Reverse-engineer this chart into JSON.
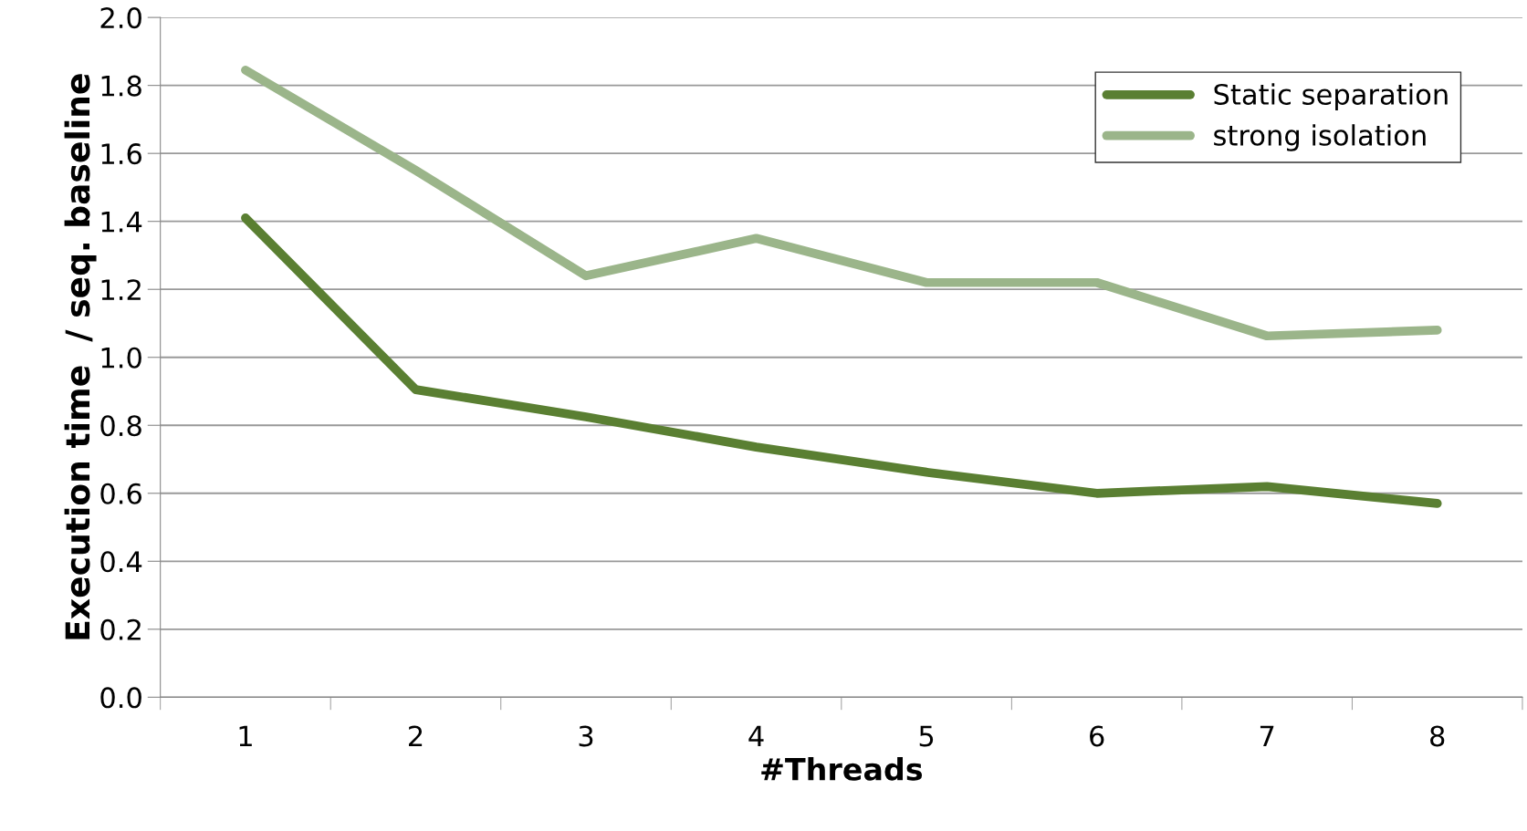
{
  "chart_data": {
    "type": "line",
    "xlabel": "#Threads",
    "ylabel": "Execution time  / seq. baseline",
    "categories": [
      "1",
      "2",
      "3",
      "4",
      "5",
      "6",
      "7",
      "8"
    ],
    "series": [
      {
        "name": "Static separation",
        "color": "#5a7f32",
        "values": [
          1.41,
          0.905,
          0.825,
          0.736,
          0.662,
          0.6,
          0.62,
          0.57
        ]
      },
      {
        "name": "strong isolation",
        "color": "#9bb58a",
        "values": [
          1.845,
          1.55,
          1.24,
          1.35,
          1.22,
          1.22,
          1.063,
          1.08
        ]
      }
    ],
    "ylim": [
      0,
      2
    ],
    "yticks": [
      {
        "value": 0,
        "label": "0.0"
      },
      0.2,
      0.4,
      0.6,
      0.8,
      {
        "value": 1,
        "label": "1.0"
      },
      1.2,
      1.4,
      1.6,
      1.8,
      {
        "value": 2,
        "label": "2.0"
      }
    ],
    "grid": "y",
    "legend": "top right",
    "marker": "none",
    "line_style": "solid"
  }
}
